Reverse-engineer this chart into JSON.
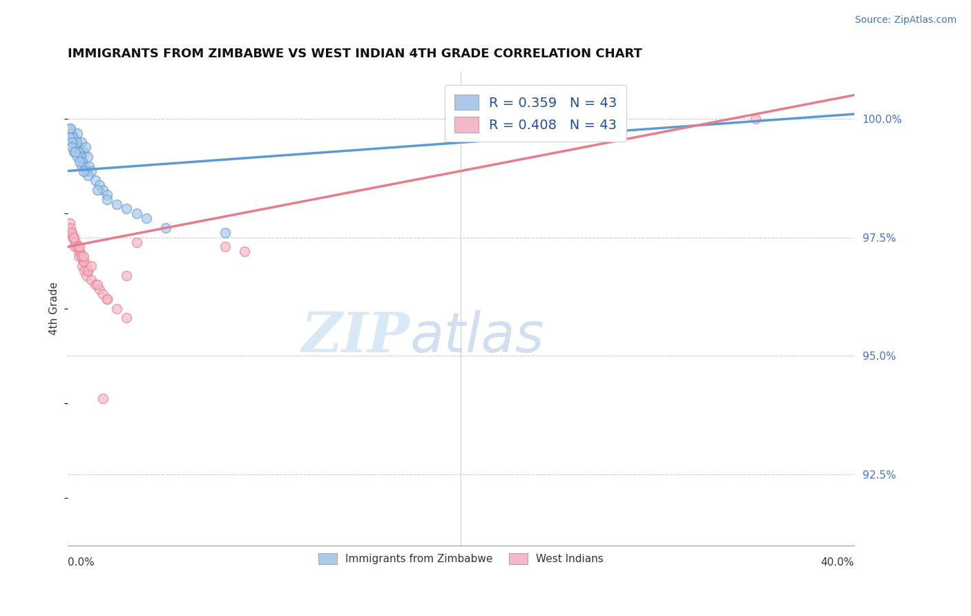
{
  "title": "IMMIGRANTS FROM ZIMBABWE VS WEST INDIAN 4TH GRADE CORRELATION CHART",
  "source": "Source: ZipAtlas.com",
  "ylabel": "4th Grade",
  "ylabel_right_ticks": [
    "100.0%",
    "97.5%",
    "95.0%",
    "92.5%"
  ],
  "ylabel_right_values": [
    100.0,
    97.5,
    95.0,
    92.5
  ],
  "xmin": 0.0,
  "xmax": 40.0,
  "ymin": 91.0,
  "ymax": 101.0,
  "legend_r1": "R = 0.359",
  "legend_n1": "N = 43",
  "legend_r2": "R = 0.408",
  "legend_n2": "N = 43",
  "legend_color1": "#adc8e8",
  "legend_color2": "#f4b8c8",
  "blue_color": "#5b9bd5",
  "pink_color": "#e87a8a",
  "title_fontsize": 13,
  "watermark_zip": "ZIP",
  "watermark_atlas": "atlas",
  "blue_x": [
    0.1,
    0.2,
    0.3,
    0.4,
    0.5,
    0.6,
    0.7,
    0.8,
    0.9,
    1.0,
    0.15,
    0.25,
    0.35,
    0.45,
    0.55,
    0.65,
    0.75,
    0.85,
    0.95,
    1.1,
    1.2,
    1.4,
    1.6,
    1.8,
    2.0,
    2.5,
    3.0,
    0.1,
    0.2,
    0.3,
    0.5,
    0.7,
    1.0,
    1.5,
    2.0,
    3.5,
    4.0,
    0.2,
    0.4,
    0.6,
    0.8,
    5.0,
    8.0
  ],
  "blue_y": [
    99.8,
    99.7,
    99.6,
    99.5,
    99.7,
    99.4,
    99.5,
    99.3,
    99.4,
    99.2,
    99.8,
    99.6,
    99.4,
    99.5,
    99.3,
    99.2,
    99.1,
    99.0,
    98.9,
    99.0,
    98.9,
    98.7,
    98.6,
    98.5,
    98.4,
    98.2,
    98.1,
    99.6,
    99.5,
    99.3,
    99.2,
    99.0,
    98.8,
    98.5,
    98.3,
    98.0,
    97.9,
    99.4,
    99.3,
    99.1,
    98.9,
    97.7,
    97.6
  ],
  "pink_x": [
    0.1,
    0.2,
    0.3,
    0.4,
    0.5,
    0.6,
    0.7,
    0.8,
    0.9,
    1.0,
    0.15,
    0.25,
    0.35,
    0.55,
    0.75,
    0.85,
    0.95,
    1.2,
    1.4,
    1.6,
    1.8,
    2.0,
    2.5,
    3.0,
    0.2,
    0.4,
    0.6,
    0.8,
    1.0,
    1.5,
    2.0,
    0.3,
    0.5,
    0.7,
    3.5,
    8.0,
    9.0,
    35.0,
    0.6,
    0.8,
    1.2,
    3.0,
    1.8
  ],
  "pink_y": [
    97.8,
    97.6,
    97.5,
    97.4,
    97.3,
    97.2,
    97.1,
    97.0,
    96.9,
    96.8,
    97.7,
    97.5,
    97.3,
    97.1,
    96.9,
    96.8,
    96.7,
    96.6,
    96.5,
    96.4,
    96.3,
    96.2,
    96.0,
    95.8,
    97.6,
    97.4,
    97.2,
    97.0,
    96.8,
    96.5,
    96.2,
    97.5,
    97.3,
    97.1,
    97.4,
    97.3,
    97.2,
    100.0,
    97.3,
    97.1,
    96.9,
    96.7,
    94.1
  ],
  "blue_trend_x0": 0.0,
  "blue_trend_x1": 40.0,
  "blue_trend_y0": 98.9,
  "blue_trend_y1": 100.1,
  "pink_trend_x0": 0.0,
  "pink_trend_x1": 40.0,
  "pink_trend_y0": 97.3,
  "pink_trend_y1": 100.5
}
